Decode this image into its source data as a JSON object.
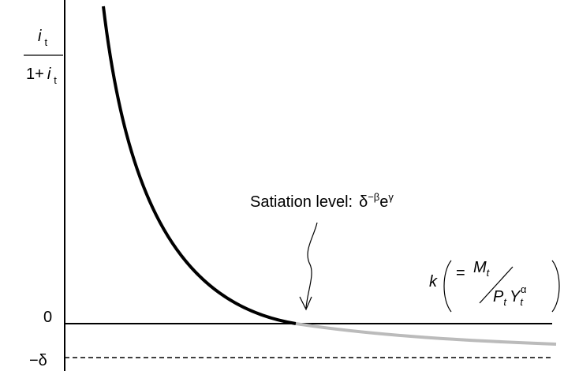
{
  "y_label": {
    "numerator": "i",
    "numerator_sub": "t",
    "denominator_prefix": "1+",
    "denominator": "i",
    "denominator_sub": "t"
  },
  "zero_label": "0",
  "minus_delta_label": "−δ",
  "annotation": {
    "text": "Satiation level:",
    "delta": "δ",
    "delta_sup": "−β",
    "e": "e",
    "e_sup": "γ"
  },
  "x_label": {
    "k": "k",
    "equals": "=",
    "M": "M",
    "M_sub": "t",
    "P": "P",
    "P_sub": "t",
    "Y": "Y",
    "Y_sub": "t",
    "Y_sup": "α"
  }
}
